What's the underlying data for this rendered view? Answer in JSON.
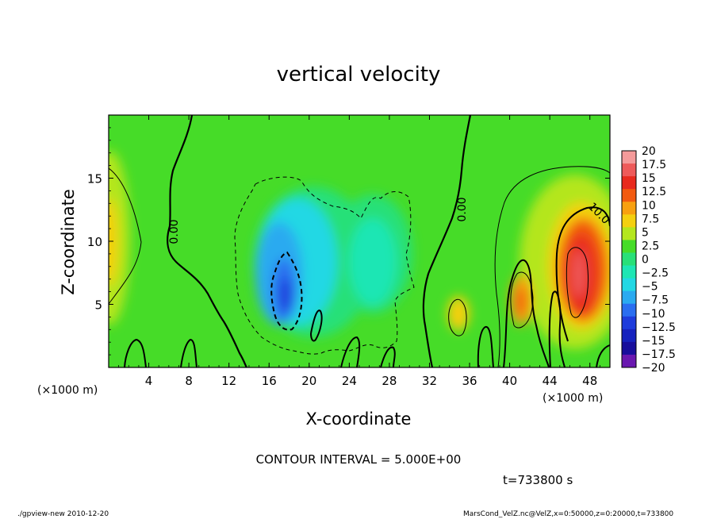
{
  "chart_data": {
    "type": "heatmap",
    "title": "vertical velocity",
    "xlabel": "X-coordinate",
    "ylabel": "Z-coordinate",
    "x_unit": "(×1000 m)",
    "y_unit": "(×1000 m)",
    "xlim": [
      0,
      50
    ],
    "ylim": [
      0,
      20
    ],
    "x_ticks": [
      "4",
      "8",
      "12",
      "16",
      "20",
      "24",
      "28",
      "32",
      "36",
      "40",
      "44",
      "48"
    ],
    "y_ticks": [
      "5",
      "10",
      "15"
    ],
    "colorbar_labels": [
      "20",
      "17.5",
      "15",
      "12.5",
      "10",
      "7.5",
      "5",
      "2.5",
      "0",
      "−2.5",
      "−5",
      "−7.5",
      "−10",
      "−12.5",
      "−15",
      "−17.5",
      "−20"
    ],
    "colorbar_colors": [
      "#f49a9a",
      "#ee5a5a",
      "#e82a1e",
      "#f25a10",
      "#f8a010",
      "#f4d010",
      "#b4e61e",
      "#46dc28",
      "#28e078",
      "#1ee6b4",
      "#22d8e4",
      "#2aaaf0",
      "#2a6ef0",
      "#1e3cdc",
      "#1622be",
      "#180e9c",
      "#6a18b0"
    ],
    "field_extremes": {
      "min": -15,
      "max": 17.5
    },
    "contour_labels": [
      "0.00",
      "0.00",
      "10.0"
    ],
    "contour_interval": "CONTOUR INTERVAL = 5.000E+00",
    "time": "t=733800  s"
  },
  "footer": {
    "left": "./gpview-new   2010-12-20",
    "right": "MarsCond_VelZ.nc@VelZ,x=0:50000,z=0:20000,t=733800"
  }
}
